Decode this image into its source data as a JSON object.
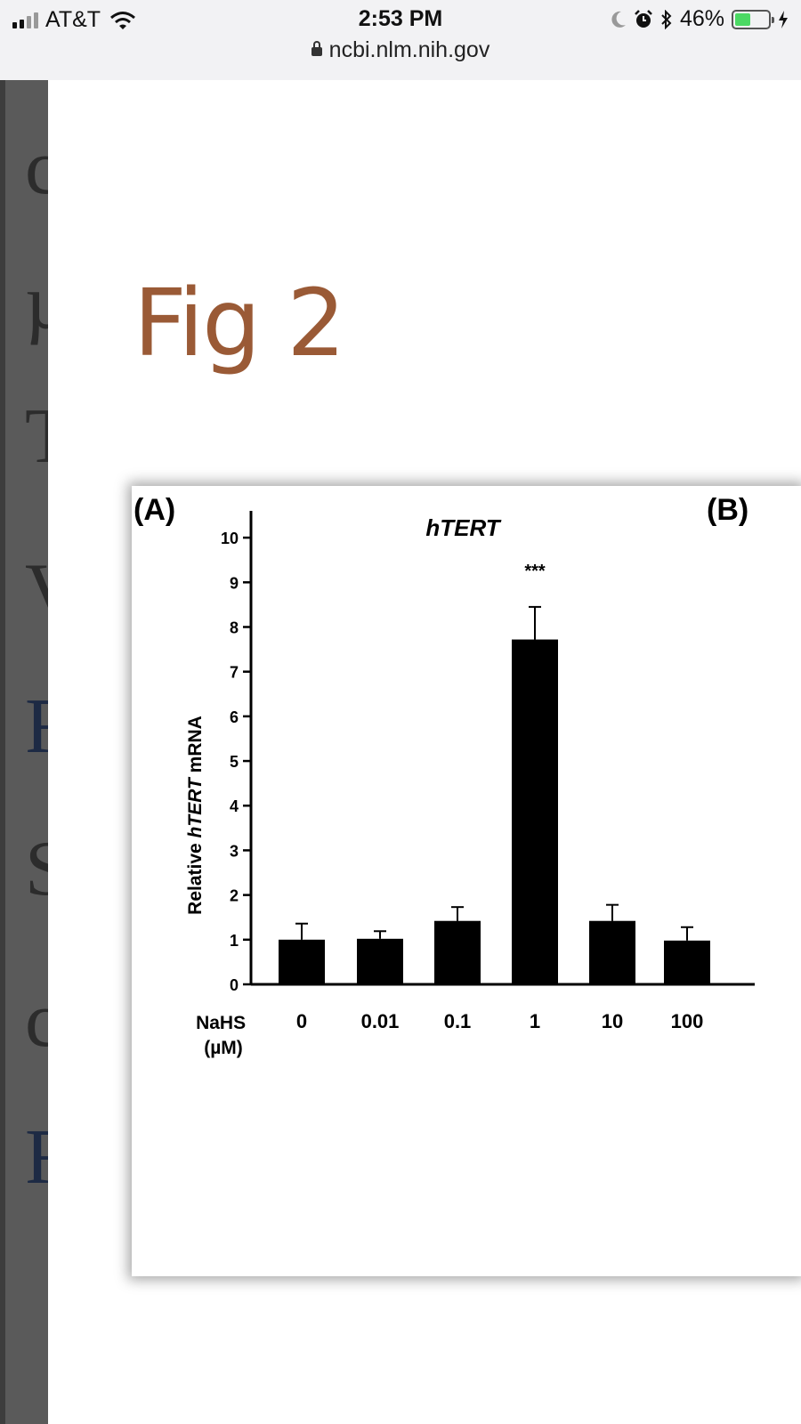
{
  "status_bar": {
    "carrier": "AT&T",
    "time": "2:53 PM",
    "battery": "46%",
    "battery_level": 0.46,
    "icons": [
      "signal-icon",
      "wifi-icon",
      "moon-icon",
      "alarm-icon",
      "bluetooth-icon",
      "battery-icon",
      "charging-icon"
    ]
  },
  "browser": {
    "url": "ncbi.nlm.nih.gov"
  },
  "background_letters": [
    "c",
    "µ",
    "T",
    "V",
    "F",
    "S",
    "c",
    "F"
  ],
  "page": {
    "figure_title": "Fig 2"
  },
  "figure": {
    "panel_a_label": "(A)",
    "panel_b_label": "(B)",
    "significance_label": "***",
    "x_axis_label_line1": "NaHS",
    "x_axis_label_line2": "(µM)",
    "y_axis_label_pre": "Relative ",
    "y_axis_label_italic": "hTERT",
    "y_axis_label_post": " mRNA"
  },
  "chart_data": {
    "type": "bar",
    "title": "hTERT",
    "categories": [
      "0",
      "0.01",
      "0.1",
      "1",
      "10",
      "100"
    ],
    "values": [
      1.0,
      1.02,
      1.42,
      7.72,
      1.42,
      0.98
    ],
    "errors": [
      0.36,
      0.17,
      0.31,
      0.73,
      0.36,
      0.3
    ],
    "ylim": [
      0,
      10.6
    ],
    "yticks": [
      0,
      1,
      2,
      3,
      4,
      5,
      6,
      7,
      8,
      9,
      10
    ],
    "colors": {
      "bar": "#000000"
    }
  }
}
